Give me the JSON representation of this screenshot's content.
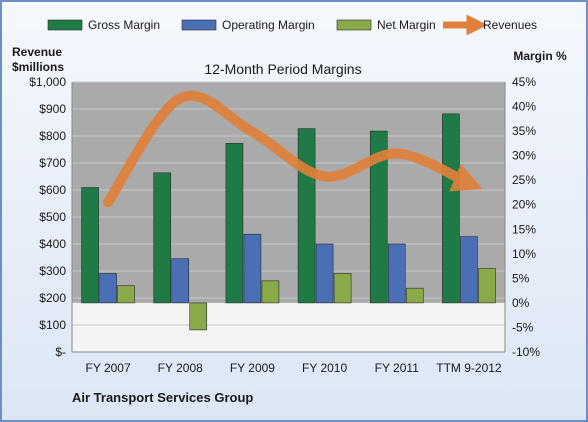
{
  "chart_data": {
    "type": "bar",
    "title": "12-Month Period Margins",
    "company": "Air Transport  Services Group",
    "left_axis": {
      "label_line1": "Revenue",
      "label_line2": "$millions",
      "ylim": [
        0,
        1000
      ],
      "ticks": [
        "$-",
        "$100",
        "$200",
        "$300",
        "$400",
        "$500",
        "$600",
        "$700",
        "$800",
        "$900",
        "$1,000"
      ]
    },
    "right_axis": {
      "label": "Margin %",
      "ylim": [
        -10,
        45
      ],
      "ticks": [
        "-10%",
        "-5%",
        "0%",
        "5%",
        "10%",
        "15%",
        "20%",
        "25%",
        "30%",
        "35%",
        "40%",
        "45%"
      ]
    },
    "categories": [
      "FY 2007",
      "FY 2008",
      "FY 2009",
      "FY 2010",
      "FY 2011",
      "TTM 9-2012"
    ],
    "legend_position": "top",
    "series": [
      {
        "name": "Gross Margin",
        "axis": "right",
        "kind": "bar",
        "color": "#1f7a45",
        "values": [
          23.5,
          26.5,
          32.5,
          35.5,
          35,
          38.5
        ]
      },
      {
        "name": "Operating Margin",
        "axis": "right",
        "kind": "bar",
        "color": "#4a6fb5",
        "values": [
          6,
          9,
          14,
          12,
          12,
          13.5
        ]
      },
      {
        "name": "Net Margin",
        "axis": "right",
        "kind": "bar",
        "color": "#8aaa4a",
        "values": [
          3.5,
          -5.5,
          4.5,
          6,
          3,
          7
        ]
      },
      {
        "name": "Revenues",
        "axis": "left",
        "kind": "line",
        "color": "#e0803a",
        "values": [
          555,
          940,
          815,
          650,
          735,
          625
        ]
      }
    ],
    "colors": {
      "background": "#e4ecf7",
      "plot_upper": "#aaaaaa",
      "plot_lower": "#f4f4f4",
      "border": "#6d8fc7"
    }
  }
}
